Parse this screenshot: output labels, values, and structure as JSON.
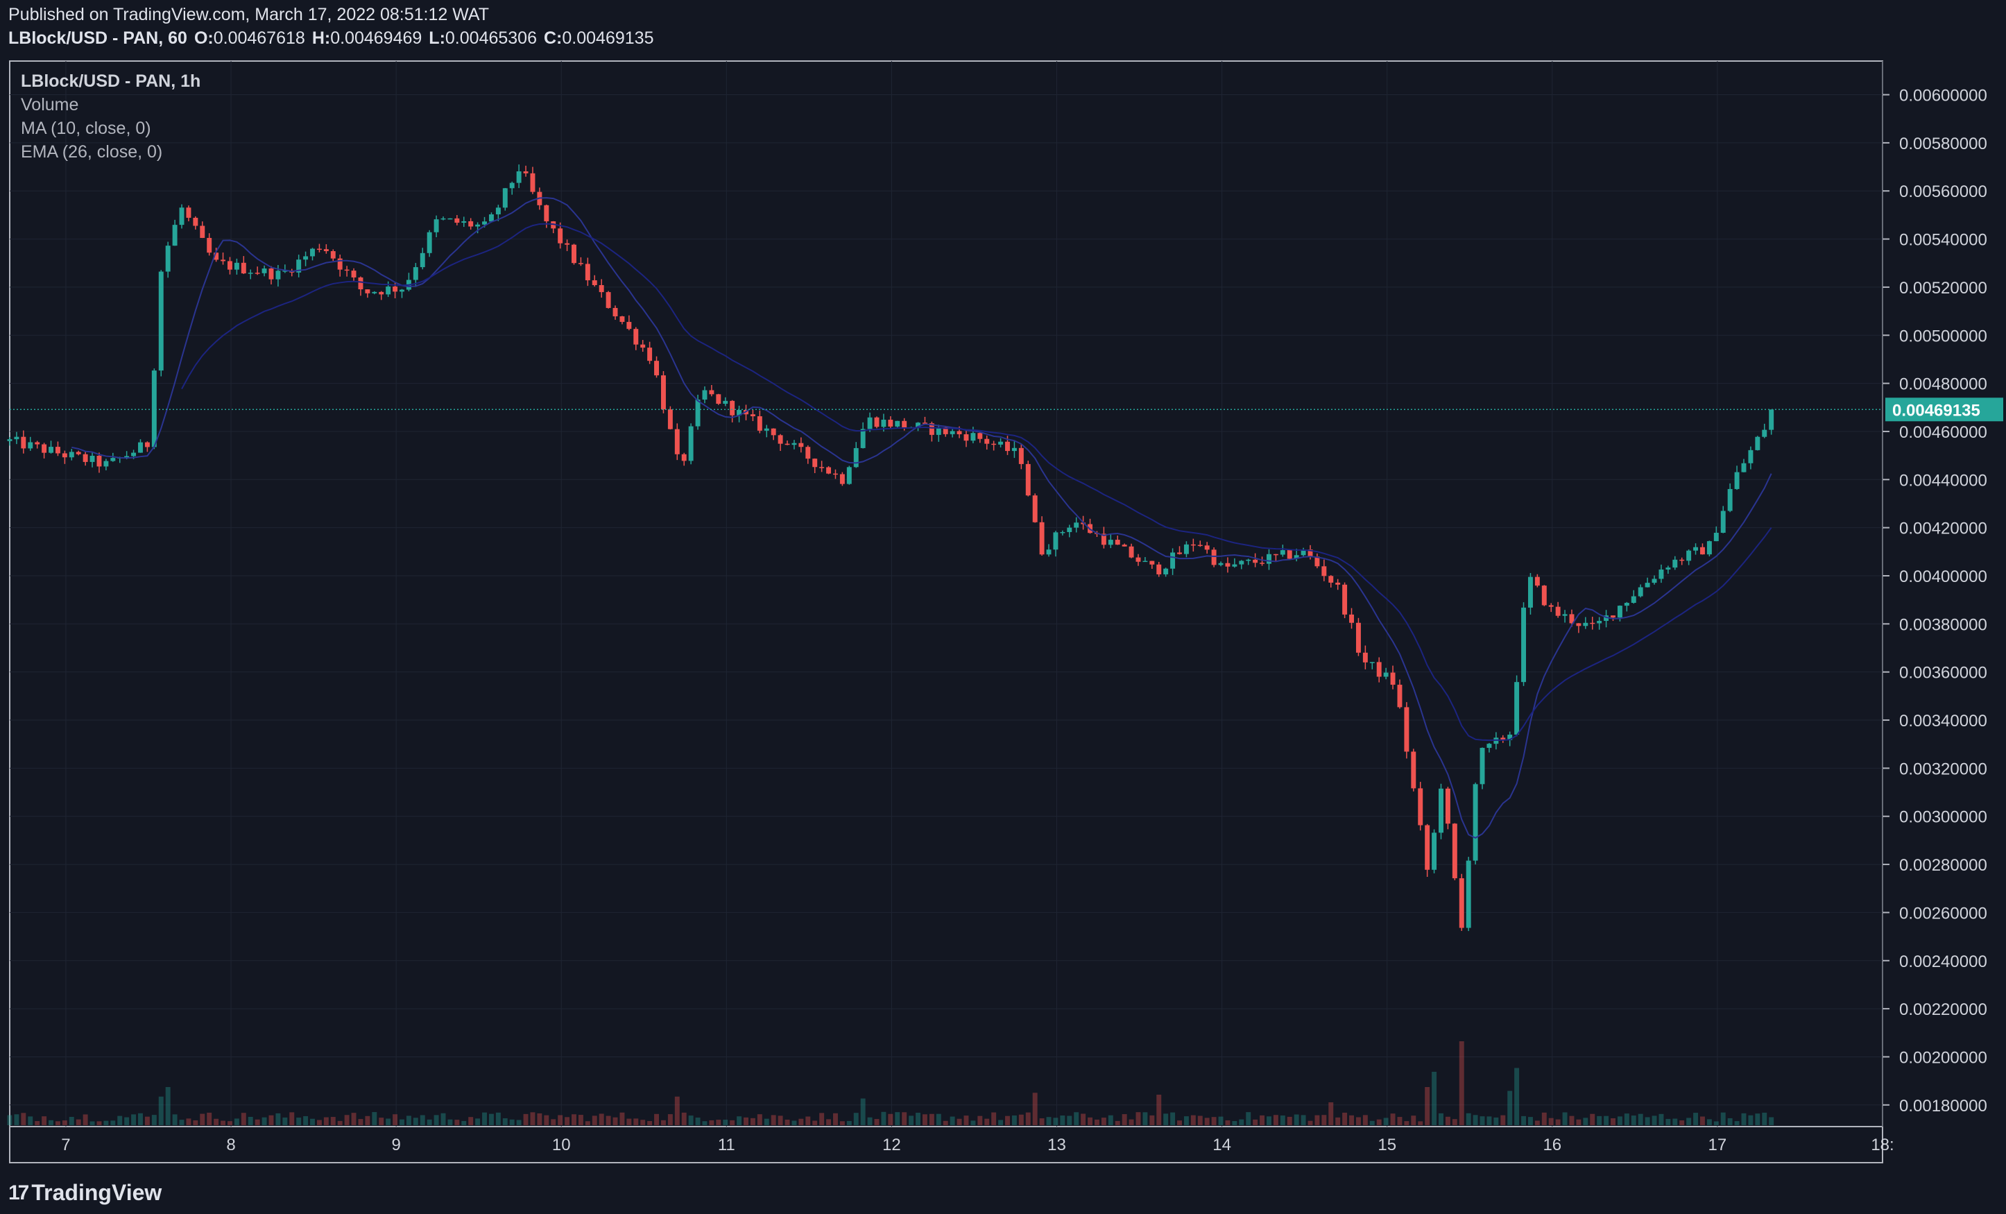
{
  "header": {
    "published": "Published on TradingView.com, March 17, 2022 08:51:12 WAT",
    "symbol_interval": "LBlock/USD - PAN, 60",
    "o_label": "O:",
    "o_value": "0.00467618",
    "h_label": "H:",
    "h_value": "0.00469469",
    "l_label": "L:",
    "l_value": "0.00465306",
    "c_label": "C:",
    "c_value": "0.00469135"
  },
  "legend": {
    "symbol": "LBlock/USD - PAN, 1h",
    "volume": "Volume",
    "ma": "MA (10, close, 0)",
    "ema": "EMA (26, close, 0)"
  },
  "brand": {
    "logo": "17",
    "name": "TradingView"
  },
  "colors": {
    "background": "#131722",
    "up": "#26a69a",
    "down": "#ef5350",
    "ma_line": "#1e2a8a",
    "ema_line": "#1a237e",
    "last_price_badge": "#26a69a",
    "grid": "#1f2533"
  },
  "chart_data": {
    "type": "candlestick",
    "interval": "1h",
    "price_axis_ticks": [
      "0.00600000",
      "0.00580000",
      "0.00560000",
      "0.00540000",
      "0.00520000",
      "0.00500000",
      "0.00480000",
      "0.00460000",
      "0.00440000",
      "0.00420000",
      "0.00400000",
      "0.00380000",
      "0.00360000",
      "0.00340000",
      "0.00320000",
      "0.00300000",
      "0.00280000",
      "0.00260000",
      "0.00240000",
      "0.00220000",
      "0.00200000",
      "0.00180000"
    ],
    "time_axis_ticks": [
      "7",
      "8",
      "9",
      "10",
      "11",
      "12",
      "13",
      "14",
      "15",
      "16",
      "17",
      "18:"
    ],
    "last_price": "0.00469135",
    "ylim": [
      0.00171,
      0.00614
    ],
    "xlim_days": [
      6.66,
      18.0
    ],
    "keypoints": [
      {
        "t": 6.66,
        "p": 0.00456
      },
      {
        "t": 7.25,
        "p": 0.00446
      },
      {
        "t": 7.5,
        "p": 0.00455
      },
      {
        "t": 7.58,
        "p": 0.0053
      },
      {
        "t": 7.7,
        "p": 0.00553
      },
      {
        "t": 7.9,
        "p": 0.0053
      },
      {
        "t": 8.3,
        "p": 0.00525
      },
      {
        "t": 8.55,
        "p": 0.00538
      },
      {
        "t": 8.8,
        "p": 0.00518
      },
      {
        "t": 9.05,
        "p": 0.0052
      },
      {
        "t": 9.25,
        "p": 0.00548
      },
      {
        "t": 9.55,
        "p": 0.00545
      },
      {
        "t": 9.75,
        "p": 0.0057
      },
      {
        "t": 9.9,
        "p": 0.00548
      },
      {
        "t": 10.2,
        "p": 0.0052
      },
      {
        "t": 10.55,
        "p": 0.0049
      },
      {
        "t": 10.72,
        "p": 0.00443
      },
      {
        "t": 10.85,
        "p": 0.00477
      },
      {
        "t": 11.3,
        "p": 0.00458
      },
      {
        "t": 11.7,
        "p": 0.0044
      },
      {
        "t": 11.85,
        "p": 0.00465
      },
      {
        "t": 12.5,
        "p": 0.00458
      },
      {
        "t": 12.78,
        "p": 0.0045
      },
      {
        "t": 12.9,
        "p": 0.0041
      },
      {
        "t": 13.1,
        "p": 0.00423
      },
      {
        "t": 13.6,
        "p": 0.00402
      },
      {
        "t": 13.85,
        "p": 0.00415
      },
      {
        "t": 14.0,
        "p": 0.00403
      },
      {
        "t": 14.5,
        "p": 0.0041
      },
      {
        "t": 14.7,
        "p": 0.00395
      },
      {
        "t": 14.85,
        "p": 0.00365
      },
      {
        "t": 15.05,
        "p": 0.00355
      },
      {
        "t": 15.25,
        "p": 0.00275
      },
      {
        "t": 15.33,
        "p": 0.00315
      },
      {
        "t": 15.45,
        "p": 0.00252
      },
      {
        "t": 15.55,
        "p": 0.00325
      },
      {
        "t": 15.75,
        "p": 0.00335
      },
      {
        "t": 15.85,
        "p": 0.004
      },
      {
        "t": 16.0,
        "p": 0.00385
      },
      {
        "t": 16.25,
        "p": 0.00378
      },
      {
        "t": 16.7,
        "p": 0.00405
      },
      {
        "t": 16.95,
        "p": 0.00412
      },
      {
        "t": 17.1,
        "p": 0.0044
      },
      {
        "t": 17.35,
        "p": 0.00469
      }
    ],
    "volume_spikes": [
      {
        "t": 7.62,
        "v": 1.0
      },
      {
        "t": 7.58,
        "v": 0.75
      },
      {
        "t": 10.7,
        "v": 0.75
      },
      {
        "t": 11.82,
        "v": 0.7
      },
      {
        "t": 12.88,
        "v": 0.85
      },
      {
        "t": 13.62,
        "v": 0.8
      },
      {
        "t": 14.65,
        "v": 0.6
      },
      {
        "t": 15.25,
        "v": 1.0
      },
      {
        "t": 15.3,
        "v": 1.4
      },
      {
        "t": 15.45,
        "v": 1.4
      },
      {
        "t": 15.47,
        "v": 2.2
      },
      {
        "t": 15.75,
        "v": 0.9
      },
      {
        "t": 15.78,
        "v": 1.5
      }
    ]
  }
}
